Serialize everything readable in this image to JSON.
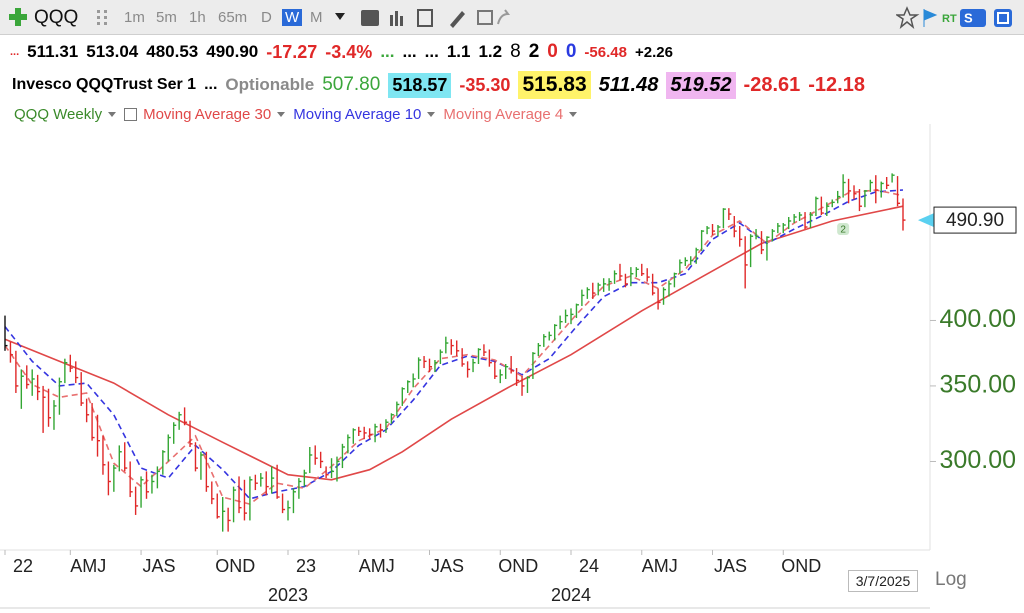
{
  "toolbar": {
    "symbol": "QQQ",
    "intervals": [
      "1m",
      "5m",
      "1h",
      "65m",
      "D",
      "W",
      "M"
    ],
    "active_interval": "W"
  },
  "quote_row": [
    "...",
    "511.31",
    "513.04",
    "480.53",
    "490.90",
    "-17.27",
    "-3.4%",
    "...",
    "...",
    "...",
    "1.1",
    "1.2",
    "8",
    "2",
    "0",
    "0",
    "-56.48",
    "+2.26"
  ],
  "name_row": [
    "Invesco QQQTrust Ser 1",
    "...",
    "Optionable",
    "507.80",
    "518.57",
    "-35.30",
    "515.83",
    "511.48",
    "519.52",
    "-28.61",
    "-12.18"
  ],
  "footer": {
    "date": "3/7/2025",
    "scale_button": "Log"
  },
  "chart_data": {
    "type": "ohlc",
    "name": "QQQ Weekly",
    "log_scale": true,
    "up_color": "#33a633",
    "down_color": "#e02828",
    "high": [
      404,
      383,
      376,
      362,
      365,
      362,
      358,
      350,
      348,
      340,
      356,
      370,
      373,
      368,
      360,
      341,
      338,
      330,
      316,
      300,
      298,
      310,
      312,
      300,
      285,
      291,
      294,
      292,
      297,
      307,
      317,
      325,
      332,
      335,
      326,
      312,
      306,
      306,
      288,
      281,
      279,
      273,
      285,
      291,
      289,
      291,
      292,
      293,
      294,
      297,
      298,
      281,
      277,
      284,
      290,
      295,
      309,
      310,
      306,
      297,
      302,
      303,
      311,
      317,
      321,
      322,
      322,
      321,
      324,
      324,
      327,
      331,
      339,
      349,
      354,
      359,
      371,
      372,
      370,
      369,
      377,
      387,
      385,
      384,
      378,
      368,
      370,
      378,
      381,
      377,
      368,
      362,
      366,
      372,
      363,
      357,
      357,
      375,
      382,
      389,
      391,
      397,
      404,
      409,
      410,
      414,
      426,
      428,
      432,
      432,
      436,
      436,
      443,
      449,
      440,
      446,
      446,
      449,
      445,
      440,
      427,
      428,
      434,
      441,
      453,
      455,
      456,
      464,
      481,
      485,
      487,
      486,
      503,
      503,
      495,
      485,
      475,
      477,
      482,
      480,
      475,
      482,
      488,
      488,
      494,
      497,
      499,
      499,
      499,
      515,
      515,
      509,
      512,
      521,
      539,
      534,
      527,
      523,
      522,
      533,
      538,
      531,
      536,
      540,
      537,
      513.04
    ],
    "low": [
      376,
      367,
      345,
      334,
      348,
      343,
      340,
      318,
      322,
      320,
      330,
      352,
      360,
      352,
      336,
      325,
      313,
      303,
      292,
      280,
      282,
      294,
      294,
      279,
      269,
      273,
      278,
      281,
      284,
      292,
      300,
      311,
      320,
      323,
      309,
      294,
      289,
      282,
      275,
      267,
      260,
      260,
      265,
      270,
      266,
      266,
      283,
      285,
      280,
      281,
      278,
      270,
      266,
      270,
      278,
      285,
      293,
      298,
      296,
      290,
      290,
      288,
      296,
      305,
      311,
      316,
      314,
      314,
      312,
      315,
      318,
      324,
      329,
      336,
      345,
      349,
      355,
      363,
      360,
      360,
      366,
      374,
      373,
      372,
      364,
      356,
      360,
      366,
      372,
      364,
      355,
      352,
      355,
      359,
      350,
      343,
      345,
      355,
      372,
      379,
      384,
      384,
      393,
      398,
      397,
      402,
      412,
      418,
      418,
      421,
      424,
      425,
      431,
      434,
      428,
      429,
      437,
      438,
      433,
      421,
      409,
      413,
      420,
      428,
      440,
      447,
      448,
      449,
      461,
      477,
      476,
      475,
      483,
      491,
      474,
      465,
      427,
      446,
      472,
      458,
      452,
      470,
      478,
      478,
      482,
      488,
      490,
      482,
      483,
      495,
      496,
      495,
      504,
      508,
      514,
      508,
      512,
      500,
      504,
      520,
      508,
      514,
      523,
      530,
      505,
      480.53
    ],
    "close": [
      380,
      373,
      350,
      357,
      351,
      355,
      346,
      342,
      328,
      336,
      353,
      367,
      363,
      356,
      338,
      330,
      315,
      313,
      298,
      288,
      296,
      306,
      296,
      282,
      274,
      289,
      282,
      288,
      294,
      306,
      315,
      323,
      330,
      325,
      311,
      296,
      304,
      285,
      278,
      268,
      271,
      266,
      283,
      273,
      270,
      289,
      287,
      290,
      285,
      290,
      279,
      272,
      273,
      282,
      288,
      293,
      304,
      302,
      300,
      292,
      294,
      300,
      309,
      315,
      320,
      319,
      318,
      317,
      322,
      320,
      325,
      330,
      337,
      348,
      353,
      355,
      369,
      368,
      364,
      367,
      375,
      382,
      380,
      376,
      366,
      362,
      367,
      377,
      375,
      367,
      357,
      358,
      364,
      361,
      354,
      350,
      356,
      374,
      380,
      387,
      388,
      396,
      399,
      404,
      405,
      413,
      421,
      426,
      423,
      430,
      431,
      433,
      440,
      438,
      431,
      440,
      444,
      440,
      437,
      423,
      415,
      426,
      431,
      440,
      450,
      452,
      452,
      462,
      480,
      483,
      480,
      484,
      502,
      497,
      480,
      472,
      448,
      475,
      475,
      462,
      474,
      480,
      485,
      486,
      490,
      494,
      496,
      484,
      496,
      513,
      498,
      505,
      509,
      515,
      530,
      521,
      518,
      505,
      521,
      530,
      522,
      529,
      527,
      538,
      508,
      490.9
    ],
    "series": [
      {
        "name": "Moving Average 30",
        "color": "#e04848",
        "dashed": false,
        "x": [
          0,
          10,
          20,
          30,
          40,
          52,
          60,
          67,
          73,
          82,
          93,
          104,
          117,
          128,
          139,
          152,
          165
        ],
        "values": [
          385,
          368,
          352,
          330,
          312,
          292,
          289,
          295,
          306,
          327,
          350,
          373,
          408,
          437,
          468,
          490,
          505
        ]
      },
      {
        "name": "Moving Average 10",
        "color": "#3535e0",
        "dashed": true,
        "x": [
          0,
          5,
          10,
          15,
          20,
          25,
          30,
          35,
          40,
          45,
          50,
          55,
          60,
          65,
          70,
          75,
          80,
          85,
          90,
          95,
          100,
          105,
          110,
          115,
          120,
          125,
          130,
          135,
          140,
          145,
          150,
          155,
          160,
          165
        ],
        "values": [
          395,
          368,
          350,
          352,
          330,
          296,
          290,
          310,
          295,
          278,
          282,
          285,
          294,
          310,
          320,
          340,
          365,
          372,
          368,
          358,
          370,
          395,
          420,
          432,
          432,
          440,
          472,
          488,
          468,
          482,
          495,
          510,
          520,
          522
        ]
      },
      {
        "name": "Moving Average 4",
        "color": "#e87070",
        "dashed": true,
        "x": [
          0,
          5,
          10,
          15,
          20,
          25,
          30,
          35,
          40,
          45,
          50,
          55,
          60,
          65,
          70,
          75,
          80,
          85,
          90,
          95,
          100,
          105,
          110,
          115,
          120,
          125,
          130,
          135,
          140,
          145,
          150,
          155,
          160,
          165
        ],
        "values": [
          380,
          351,
          342,
          345,
          299,
          285,
          300,
          316,
          279,
          275,
          287,
          284,
          297,
          313,
          321,
          348,
          370,
          373,
          369,
          357,
          380,
          405,
          429,
          438,
          427,
          444,
          476,
          490,
          468,
          488,
          503,
          519,
          522,
          516
        ]
      }
    ],
    "xlim": [
      0,
      165
    ],
    "xticks": [
      {
        "value": 0,
        "label": "22"
      },
      {
        "value": 12,
        "label": "AMJ"
      },
      {
        "value": 25,
        "label": "JAS"
      },
      {
        "value": 39,
        "label": "OND"
      },
      {
        "value": 52,
        "label": "23"
      },
      {
        "value": 65,
        "label": "AMJ"
      },
      {
        "value": 78,
        "label": "JAS"
      },
      {
        "value": 91,
        "label": "OND"
      },
      {
        "value": 104,
        "label": "24"
      },
      {
        "value": 117,
        "label": "AMJ"
      },
      {
        "value": 130,
        "label": "JAS"
      },
      {
        "value": 143,
        "label": "OND"
      }
    ],
    "year_ticks": [
      {
        "value": 52,
        "label": "2023"
      },
      {
        "value": 104,
        "label": "2024"
      }
    ],
    "ylim": [
      253,
      596
    ],
    "yticks": [
      {
        "value": 300,
        "label": "300.00"
      },
      {
        "value": 350,
        "label": "350.00"
      },
      {
        "value": 400,
        "label": "400.00"
      }
    ],
    "price_tag": {
      "value": 490.9,
      "label": "490.90"
    },
    "marker": {
      "x": 154,
      "value": 482,
      "label": "2"
    }
  }
}
